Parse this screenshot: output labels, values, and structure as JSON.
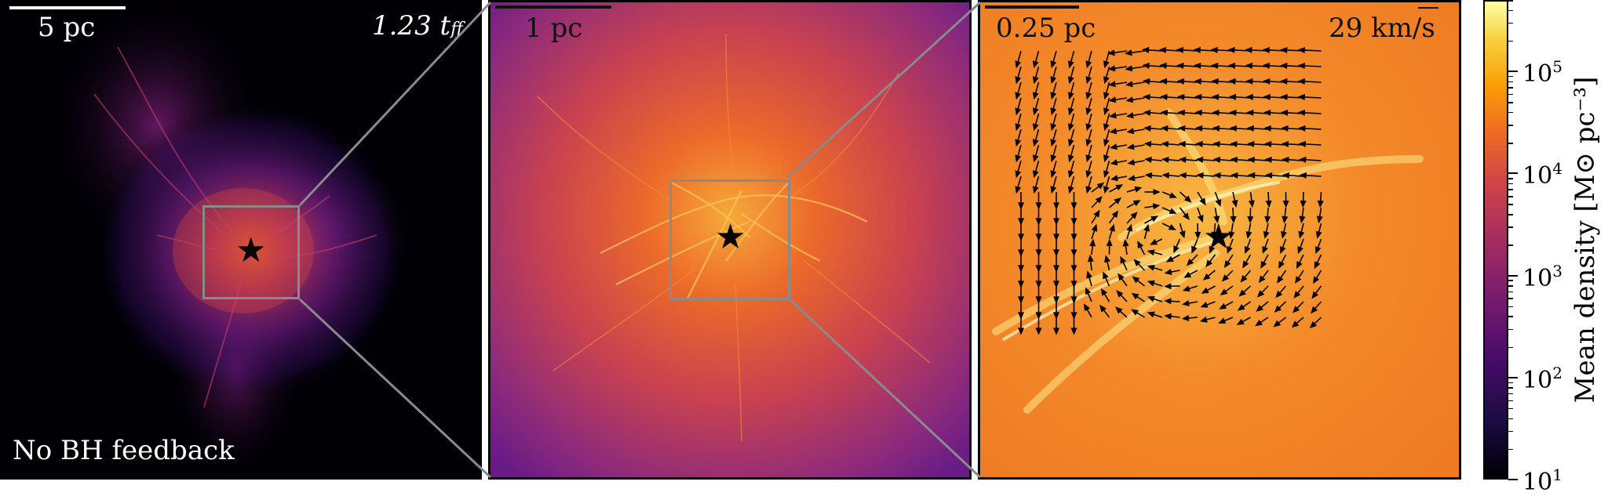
{
  "panels": [
    {
      "scale_label": "5 pc",
      "time_label": "1.23 t",
      "time_sub": "ff",
      "run_label": "No BH feedback"
    },
    {
      "scale_label": "1 pc"
    },
    {
      "scale_label": "0.25 pc",
      "velocity_label": "29 km/s"
    }
  ],
  "colorbar": {
    "label": "Mean density [M⊙ pc⁻³]",
    "scale": "log",
    "range": [
      10,
      500000
    ],
    "ticks": [
      {
        "base": "10",
        "exp": "1"
      },
      {
        "base": "10",
        "exp": "2"
      },
      {
        "base": "10",
        "exp": "3"
      },
      {
        "base": "10",
        "exp": "4"
      },
      {
        "base": "10",
        "exp": "5"
      }
    ],
    "colormap": "inferno"
  },
  "colors": {
    "zoom_box": "#8a8a8a",
    "marker": "#000000"
  }
}
